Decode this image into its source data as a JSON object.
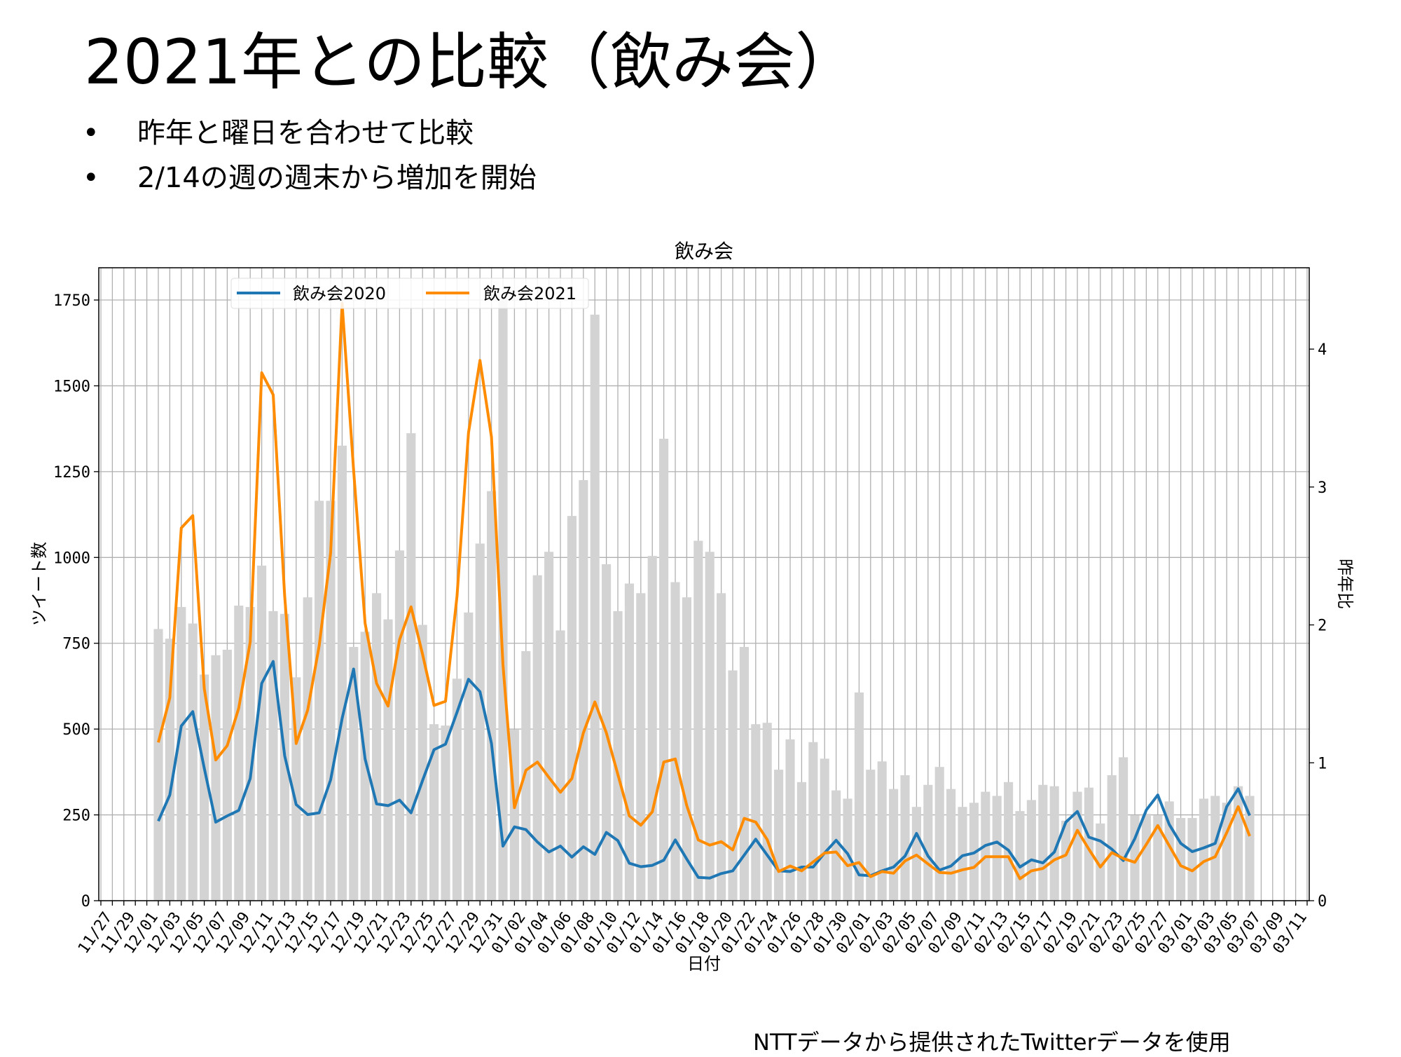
{
  "slide": {
    "title": "2021年との比較（飲み会）",
    "bullets": [
      "昨年と曜日を合わせて比較",
      "2/14の週の週末から増加を開始"
    ],
    "bullet_symbol": "•",
    "footer": "NTTデータから提供されたTwitterデータを使用"
  },
  "chart_data": {
    "type": "bar+line",
    "title": "飲み会",
    "xlabel": "日付",
    "ylabel": "ツイート数",
    "ylabel_right": "昨年比",
    "ylim": [
      0,
      1844
    ],
    "ylim_right": [
      0,
      4.59
    ],
    "yticks": [
      0,
      250,
      500,
      750,
      1000,
      1250,
      1500,
      1750
    ],
    "yticks_right": [
      0,
      1,
      2,
      3,
      4
    ],
    "grid": true,
    "legend_position": "top-left",
    "colors": {
      "2020": "#1f77b4",
      "2021": "#ff8c00",
      "ratio": "#d3d3d3",
      "grid": "#b0b0b0"
    },
    "xtick_labels": [
      "11/27",
      "11/29",
      "12/01",
      "12/03",
      "12/05",
      "12/07",
      "12/09",
      "12/11",
      "12/13",
      "12/15",
      "12/17",
      "12/19",
      "12/21",
      "12/23",
      "12/25",
      "12/27",
      "12/29",
      "12/31",
      "01/02",
      "01/04",
      "01/06",
      "01/08",
      "01/10",
      "01/12",
      "01/14",
      "01/16",
      "01/18",
      "01/20",
      "01/22",
      "01/24",
      "01/26",
      "01/28",
      "01/30",
      "02/01",
      "02/03",
      "02/05",
      "02/07",
      "02/09",
      "02/11",
      "02/13",
      "02/15",
      "02/17",
      "02/19",
      "02/21",
      "02/23",
      "02/25",
      "02/27",
      "03/01",
      "03/03",
      "03/05",
      "03/07",
      "03/09",
      "03/11"
    ],
    "x_start": "12/02",
    "series": [
      {
        "name": "飲み会2020",
        "kind": "line",
        "axis": "left",
        "values": [
          232,
          308,
          509,
          551,
          386,
          229,
          247,
          263,
          356,
          633,
          697,
          422,
          280,
          251,
          256,
          352,
          531,
          675,
          413,
          282,
          277,
          293,
          256,
          350,
          440,
          456,
          549,
          645,
          609,
          458,
          159,
          215,
          207,
          171,
          142,
          159,
          127,
          157,
          135,
          199,
          175,
          109,
          99,
          103,
          118,
          177,
          121,
          68,
          66,
          79,
          87,
          133,
          179,
          133,
          87,
          85,
          98,
          98,
          139,
          176,
          137,
          75,
          73,
          87,
          98,
          130,
          196,
          130,
          89,
          101,
          131,
          139,
          161,
          171,
          147,
          98,
          119,
          110,
          142,
          229,
          260,
          185,
          174,
          150,
          117,
          181,
          264,
          308,
          222,
          167,
          143,
          154,
          167,
          274,
          326,
          248
        ]
      },
      {
        "name": "飲み会2021",
        "kind": "line",
        "axis": "left",
        "values": [
          461,
          591,
          1086,
          1122,
          618,
          410,
          452,
          561,
          754,
          1538,
          1474,
          887,
          458,
          555,
          742,
          1013,
          1740,
          1254,
          808,
          633,
          567,
          760,
          856,
          718,
          569,
          581,
          887,
          1363,
          1574,
          1351,
          688,
          271,
          380,
          404,
          359,
          316,
          356,
          489,
          579,
          489,
          368,
          247,
          220,
          259,
          404,
          413,
          277,
          177,
          162,
          172,
          148,
          240,
          229,
          178,
          85,
          101,
          87,
          113,
          139,
          142,
          102,
          111,
          70,
          85,
          80,
          116,
          133,
          107,
          82,
          80,
          90,
          97,
          128,
          128,
          128,
          64,
          87,
          94,
          119,
          133,
          205,
          150,
          98,
          140,
          123,
          112,
          164,
          219,
          160,
          102,
          87,
          114,
          128,
          198,
          274,
          188
        ]
      },
      {
        "name": "昨年比",
        "kind": "bar",
        "axis": "right",
        "values": [
          1.97,
          1.9,
          2.13,
          2.01,
          1.64,
          1.78,
          1.82,
          2.14,
          2.13,
          2.43,
          2.1,
          2.08,
          1.62,
          2.2,
          2.9,
          2.9,
          3.3,
          1.84,
          1.95,
          2.23,
          2.04,
          2.54,
          3.39,
          2.0,
          1.28,
          1.27,
          1.61,
          2.09,
          2.59,
          2.97,
          4.38,
          1.24,
          1.81,
          2.36,
          2.53,
          1.96,
          2.79,
          3.05,
          4.25,
          2.44,
          2.1,
          2.3,
          2.23,
          2.5,
          3.35,
          2.31,
          2.2,
          2.61,
          2.53,
          2.23,
          1.67,
          1.84,
          1.28,
          1.29,
          0.95,
          1.17,
          0.86,
          1.15,
          1.03,
          0.8,
          0.74,
          1.51,
          0.95,
          1.01,
          0.81,
          0.91,
          0.68,
          0.84,
          0.97,
          0.81,
          0.68,
          0.71,
          0.79,
          0.76,
          0.86,
          0.65,
          0.73,
          0.84,
          0.83,
          0.58,
          0.79,
          0.82,
          0.56,
          0.91,
          1.04,
          0.62,
          0.63,
          0.62,
          0.72,
          0.6,
          0.6,
          0.74,
          0.76,
          0.71,
          0.83,
          0.76
        ]
      }
    ]
  }
}
